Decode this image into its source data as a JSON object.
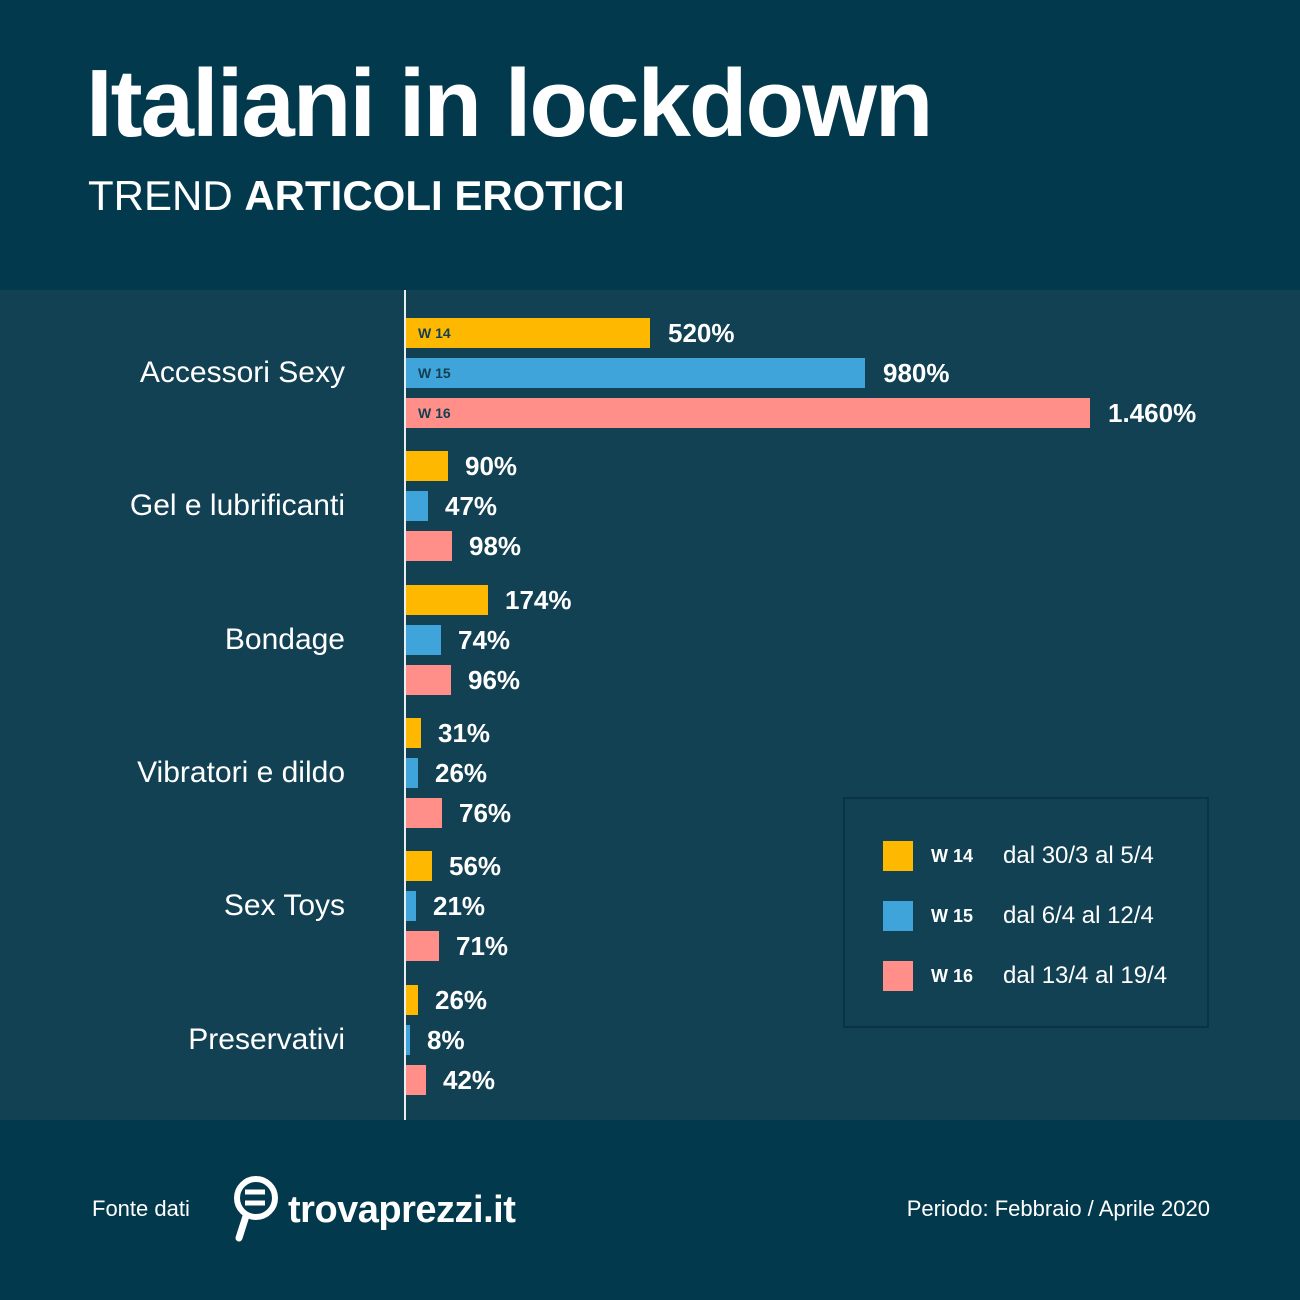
{
  "header": {
    "title": "Italiani in lockdown",
    "subtitle_light": "TREND",
    "subtitle_bold": "ARTICOLI EROTICI"
  },
  "colors": {
    "background": "#02394c",
    "panel": "#114153",
    "w14": "#ffb800",
    "w15": "#3ea4da",
    "w16": "#ff8f88"
  },
  "legend": {
    "items": [
      {
        "week": "W 14",
        "range": "dal 30/3 al 5/4",
        "color": "#ffb800"
      },
      {
        "week": "W 15",
        "range": "dal 6/4 al 12/4",
        "color": "#3ea4da"
      },
      {
        "week": "W 16",
        "range": "dal 13/4 al 19/4",
        "color": "#ff8f88"
      }
    ]
  },
  "footer": {
    "source_label": "Fonte dati",
    "brand": "trovaprezzi.it",
    "period": "Periodo: Febbraio / Aprile 2020"
  },
  "chart_data": {
    "type": "bar",
    "orientation": "horizontal",
    "title": "Italiani in lockdown",
    "subtitle": "TREND ARTICOLI EROTICI",
    "categories": [
      "Accessori Sexy",
      "Gel e lubrificanti",
      "Bondage",
      "Vibratori e dildo",
      "Sex Toys",
      "Preservativi"
    ],
    "series": [
      {
        "name": "W 14",
        "period": "dal 30/3 al 5/4",
        "values": [
          520,
          90,
          174,
          31,
          56,
          26
        ],
        "labels": [
          "520%",
          "90%",
          "174%",
          "31%",
          "56%",
          "26%"
        ]
      },
      {
        "name": "W 15",
        "period": "dal 6/4 al 12/4",
        "values": [
          980,
          47,
          74,
          26,
          21,
          8
        ],
        "labels": [
          "980%",
          "47%",
          "74%",
          "26%",
          "21%",
          "8%"
        ]
      },
      {
        "name": "W 16",
        "period": "dal 13/4 al 19/4",
        "values": [
          1460,
          98,
          96,
          76,
          71,
          42
        ],
        "labels": [
          "1.460%",
          "98%",
          "96%",
          "76%",
          "71%",
          "42%"
        ]
      }
    ],
    "xlabel": "",
    "ylabel": "",
    "unit": "%",
    "grid": false,
    "legend_position": "bottom-right",
    "source": "trovaprezzi.it",
    "period": "Febbraio / Aprile 2020"
  }
}
